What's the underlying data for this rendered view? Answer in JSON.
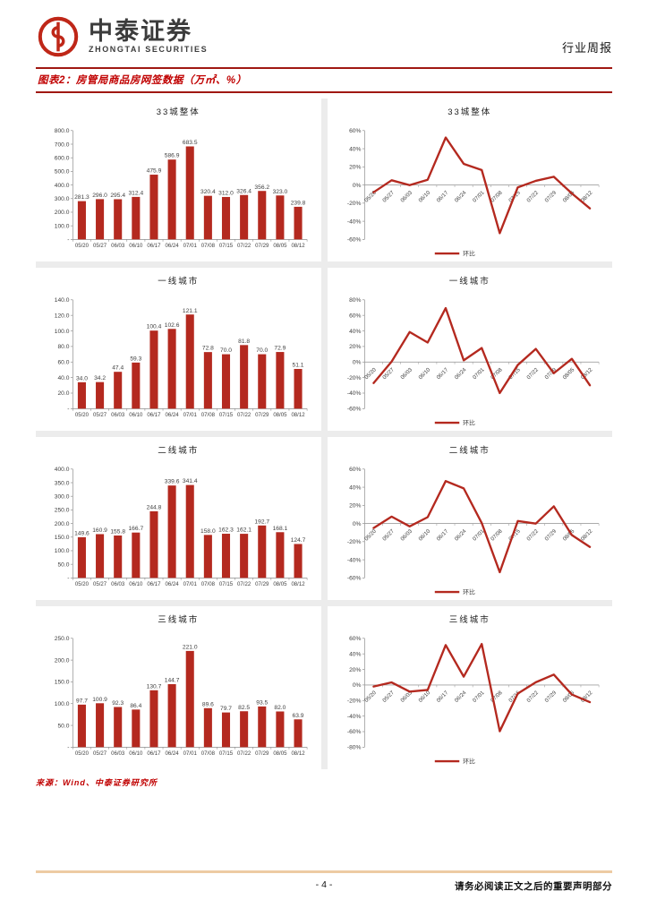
{
  "header": {
    "brand_cn": "中泰证券",
    "brand_en": "ZHONGTAI SECURITIES",
    "report_type": "行业周报"
  },
  "figure": {
    "title": "图表2：房管局商品房网签数据（万㎡、%）"
  },
  "source": "来源：Wind、中泰证券研究所",
  "footer": {
    "page_number": "- 4 -",
    "disclaimer": "请务必阅读正文之后的重要声明部分"
  },
  "colors": {
    "accent_red": "#b4291f",
    "band_red": "#a01812",
    "footer_line": "#edcba3"
  },
  "chart_data": [
    {
      "type": "bar",
      "title": "33城整体",
      "categories": [
        "05/20",
        "05/27",
        "06/03",
        "06/10",
        "06/17",
        "06/24",
        "07/01",
        "07/08",
        "07/15",
        "07/22",
        "07/29",
        "08/05",
        "08/12"
      ],
      "values": [
        281.3,
        296.0,
        295.4,
        312.4,
        475.9,
        586.9,
        683.5,
        320.4,
        312.0,
        326.4,
        356.2,
        323.0,
        239.8
      ],
      "ylim": [
        0,
        800
      ],
      "ytick_step": 100,
      "y_format": "number"
    },
    {
      "type": "line",
      "title": "33城整体",
      "legend": "环比",
      "categories": [
        "05/20",
        "05/27",
        "06/03",
        "06/10",
        "06/17",
        "06/24",
        "07/01",
        "07/08",
        "07/15",
        "07/22",
        "07/29",
        "08/05",
        "08/12"
      ],
      "values": [
        -8.0,
        5.2,
        -0.2,
        5.8,
        52.3,
        23.3,
        16.5,
        -53.1,
        -2.6,
        4.6,
        9.1,
        -9.3,
        -25.8
      ],
      "ylim": [
        -60,
        60
      ],
      "ytick_step": 20,
      "y_format": "percent"
    },
    {
      "type": "bar",
      "title": "一线城市",
      "categories": [
        "05/20",
        "05/27",
        "06/03",
        "06/10",
        "06/17",
        "06/24",
        "07/01",
        "07/08",
        "07/15",
        "07/22",
        "07/29",
        "08/05",
        "08/12"
      ],
      "values": [
        34.0,
        34.2,
        47.4,
        59.3,
        100.4,
        102.6,
        121.1,
        72.8,
        70.0,
        81.8,
        70.0,
        72.9,
        51.1
      ],
      "ylim": [
        0,
        140
      ],
      "ytick_step": 20,
      "y_format": "number"
    },
    {
      "type": "line",
      "title": "一线城市",
      "legend": "环比",
      "categories": [
        "05/20",
        "05/27",
        "06/03",
        "06/10",
        "06/17",
        "06/24",
        "07/01",
        "07/08",
        "07/15",
        "07/22",
        "07/29",
        "08/05",
        "08/12"
      ],
      "values": [
        -27.0,
        0.6,
        38.6,
        25.1,
        69.3,
        2.2,
        18.0,
        -39.9,
        -3.8,
        16.9,
        -14.4,
        4.1,
        -29.9
      ],
      "ylim": [
        -60,
        80
      ],
      "ytick_step": 20,
      "y_format": "percent"
    },
    {
      "type": "bar",
      "title": "二线城市",
      "categories": [
        "05/20",
        "05/27",
        "06/03",
        "06/10",
        "06/17",
        "06/24",
        "07/01",
        "07/08",
        "07/15",
        "07/22",
        "07/29",
        "08/05",
        "08/12"
      ],
      "values": [
        149.6,
        160.9,
        155.8,
        166.7,
        244.8,
        339.6,
        341.4,
        158.0,
        162.3,
        162.1,
        192.7,
        168.1,
        124.7
      ],
      "ylim": [
        0,
        400
      ],
      "ytick_step": 50,
      "y_format": "number"
    },
    {
      "type": "line",
      "title": "二线城市",
      "legend": "环比",
      "categories": [
        "05/20",
        "05/27",
        "06/03",
        "06/10",
        "06/17",
        "06/24",
        "07/01",
        "07/08",
        "07/15",
        "07/22",
        "07/29",
        "08/05",
        "08/12"
      ],
      "values": [
        -5.0,
        7.6,
        -3.2,
        7.0,
        46.8,
        38.7,
        0.5,
        -53.7,
        2.7,
        -0.1,
        18.9,
        -12.8,
        -25.8
      ],
      "ylim": [
        -60,
        60
      ],
      "ytick_step": 20,
      "y_format": "percent"
    },
    {
      "type": "bar",
      "title": "三线城市",
      "categories": [
        "05/20",
        "05/27",
        "06/03",
        "06/10",
        "06/17",
        "06/24",
        "07/01",
        "07/08",
        "07/15",
        "07/22",
        "07/29",
        "08/05",
        "08/12"
      ],
      "values": [
        97.7,
        100.9,
        92.3,
        86.4,
        130.7,
        144.7,
        221.0,
        89.6,
        79.7,
        82.5,
        93.5,
        82.0,
        63.9
      ],
      "ylim": [
        0,
        250
      ],
      "ytick_step": 50,
      "y_format": "number"
    },
    {
      "type": "line",
      "title": "三线城市",
      "legend": "环比",
      "categories": [
        "05/20",
        "05/27",
        "06/03",
        "06/10",
        "06/17",
        "06/24",
        "07/01",
        "07/08",
        "07/15",
        "07/22",
        "07/29",
        "08/05",
        "08/12"
      ],
      "values": [
        -2.0,
        3.3,
        -8.5,
        -6.4,
        51.3,
        10.7,
        52.7,
        -59.5,
        -11.0,
        3.5,
        13.3,
        -12.3,
        -22.1
      ],
      "ylim": [
        -80,
        60
      ],
      "ytick_step": 20,
      "y_format": "percent"
    }
  ]
}
